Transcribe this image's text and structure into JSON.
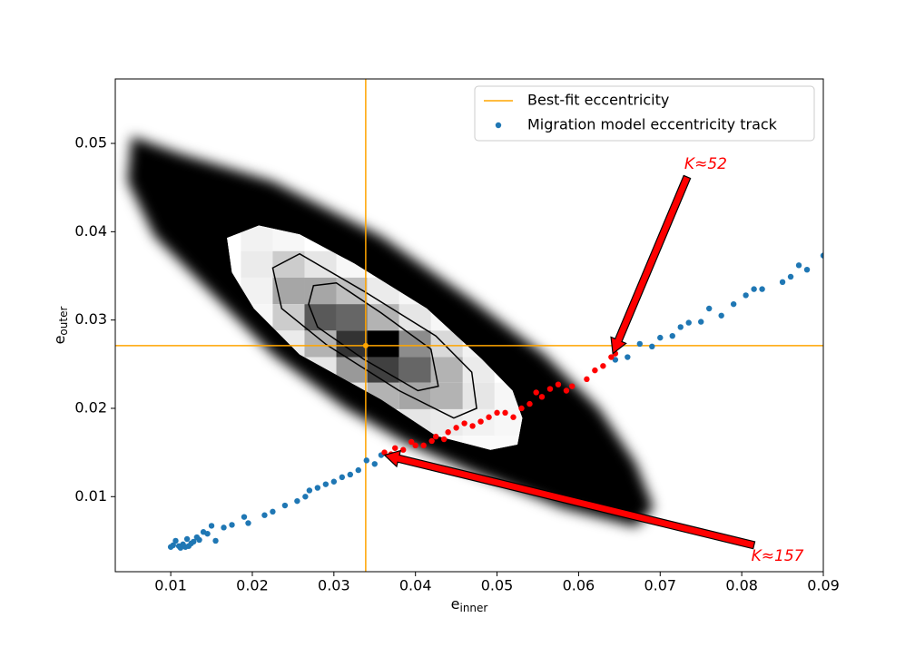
{
  "chart_data": {
    "type": "scatter",
    "xlabel": {
      "text": "e",
      "subscript": "inner"
    },
    "ylabel": {
      "text": "e",
      "subscript": "outer"
    },
    "xlim": [
      0.0032,
      0.09
    ],
    "ylim": [
      0.0015,
      0.0573
    ],
    "xticks": [
      0.01,
      0.02,
      0.03,
      0.04,
      0.05,
      0.06,
      0.07,
      0.08,
      0.09
    ],
    "yticks": [
      0.01,
      0.02,
      0.03,
      0.04,
      0.05
    ],
    "legend": "upper right",
    "cloud": {
      "color": "#000000",
      "x": [
        0.0052,
        0.0113,
        0.0225,
        0.0358,
        0.0469,
        0.0558,
        0.0625,
        0.067,
        0.0692,
        0.067,
        0.0581,
        0.0469,
        0.0392,
        0.0314,
        0.0225,
        0.0147,
        0.008,
        0.0047
      ],
      "y": [
        0.0508,
        0.0488,
        0.0457,
        0.0395,
        0.0323,
        0.0261,
        0.02,
        0.0138,
        0.0087,
        0.0066,
        0.0087,
        0.0128,
        0.0159,
        0.02,
        0.0261,
        0.0333,
        0.0395,
        0.0457
      ]
    },
    "contours": [
      {
        "fill": "#ffffff",
        "x": [
          0.0169,
          0.0208,
          0.0258,
          0.0325,
          0.0414,
          0.0481,
          0.0519,
          0.0531,
          0.0525,
          0.0492,
          0.0425,
          0.0358,
          0.0258,
          0.0202,
          0.0175
        ],
        "y": [
          0.0393,
          0.0407,
          0.0397,
          0.0364,
          0.0313,
          0.0256,
          0.022,
          0.0189,
          0.0159,
          0.0153,
          0.0169,
          0.021,
          0.0261,
          0.0313,
          0.0354
        ]
      },
      {
        "x": [
          0.0225,
          0.0258,
          0.0336,
          0.0425,
          0.0469,
          0.0475,
          0.0447,
          0.038,
          0.0291,
          0.0236
        ],
        "y": [
          0.0359,
          0.0375,
          0.0333,
          0.0282,
          0.0241,
          0.02,
          0.0189,
          0.022,
          0.0272,
          0.0313
        ]
      },
      {
        "x": [
          0.0275,
          0.0303,
          0.0358,
          0.0419,
          0.0428,
          0.0403,
          0.0336,
          0.028,
          0.0269
        ],
        "y": [
          0.0339,
          0.0342,
          0.0308,
          0.0267,
          0.0225,
          0.022,
          0.0256,
          0.0292,
          0.0318
        ]
      }
    ],
    "hist2d": {
      "xbins": [
        0.0147,
        0.0186,
        0.0225,
        0.0264,
        0.0303,
        0.0341,
        0.038,
        0.0419,
        0.0458,
        0.0497,
        0.0536
      ],
      "ybins": [
        0.0408,
        0.0378,
        0.0348,
        0.0318,
        0.0288,
        0.0258,
        0.0229,
        0.0199,
        0.0169,
        0.0139
      ],
      "values": [
        [
          0,
          0.05,
          0.03,
          0,
          0,
          0,
          0,
          0,
          0,
          0
        ],
        [
          0,
          0.08,
          0.2,
          0.1,
          0.03,
          0,
          0,
          0,
          0,
          0
        ],
        [
          0,
          0.05,
          0.35,
          0.35,
          0.25,
          0.08,
          0.03,
          0,
          0,
          0
        ],
        [
          0,
          0.03,
          0.2,
          0.65,
          0.6,
          0.3,
          0.1,
          0.03,
          0,
          0
        ],
        [
          0,
          0,
          0.08,
          0.3,
          0.8,
          1.0,
          0.45,
          0.15,
          0.05,
          0
        ],
        [
          0,
          0,
          0,
          0.1,
          0.4,
          0.75,
          0.6,
          0.3,
          0.08,
          0
        ],
        [
          0,
          0,
          0,
          0,
          0.1,
          0.3,
          0.35,
          0.3,
          0.1,
          0.03
        ],
        [
          0,
          0,
          0,
          0,
          0,
          0.05,
          0.1,
          0.08,
          0.05,
          0.03
        ],
        [
          0,
          0,
          0,
          0,
          0,
          0,
          0.02,
          0.03,
          0.02,
          0.02
        ]
      ]
    },
    "best_fit": {
      "name": "Best-fit eccentricity",
      "x": 0.0339,
      "y": 0.0271,
      "color": "#ffa500"
    },
    "series": [
      {
        "name": "Migration model eccentricity track",
        "color": "#1f77b4",
        "x": [
          0.01,
          0.0103,
          0.0106,
          0.011,
          0.0112,
          0.0115,
          0.0118,
          0.012,
          0.0122,
          0.0125,
          0.0128,
          0.0132,
          0.0135,
          0.014,
          0.0145,
          0.015,
          0.0155,
          0.0165,
          0.0175,
          0.019,
          0.0195,
          0.0215,
          0.0225,
          0.024,
          0.0255,
          0.0265,
          0.027,
          0.028,
          0.029,
          0.03,
          0.031,
          0.032,
          0.033,
          0.034,
          0.035,
          0.0358,
          0.0645,
          0.066,
          0.0675,
          0.069,
          0.07,
          0.0715,
          0.0725,
          0.0735,
          0.075,
          0.076,
          0.0775,
          0.079,
          0.0805,
          0.0815,
          0.0825,
          0.085,
          0.086,
          0.087,
          0.088,
          0.09
        ],
        "y": [
          0.0043,
          0.0045,
          0.005,
          0.0044,
          0.0042,
          0.0046,
          0.0043,
          0.0052,
          0.0044,
          0.0047,
          0.0049,
          0.0054,
          0.0051,
          0.006,
          0.0058,
          0.0067,
          0.005,
          0.0065,
          0.0068,
          0.0077,
          0.007,
          0.0079,
          0.0083,
          0.009,
          0.0095,
          0.01,
          0.0107,
          0.011,
          0.0114,
          0.0117,
          0.0122,
          0.0125,
          0.013,
          0.0141,
          0.0137,
          0.0147,
          0.0255,
          0.0258,
          0.0273,
          0.027,
          0.028,
          0.0282,
          0.0292,
          0.0297,
          0.0298,
          0.0313,
          0.0305,
          0.0318,
          0.0328,
          0.0335,
          0.0335,
          0.0343,
          0.0349,
          0.0362,
          0.0357,
          0.0373
        ]
      },
      {
        "color": "#ff0000",
        "x": [
          0.0362,
          0.037,
          0.0375,
          0.0385,
          0.0395,
          0.04,
          0.041,
          0.042,
          0.0425,
          0.0435,
          0.044,
          0.045,
          0.046,
          0.047,
          0.048,
          0.049,
          0.05,
          0.051,
          0.052,
          0.053,
          0.054,
          0.0548,
          0.0555,
          0.0565,
          0.0575,
          0.0585,
          0.0592,
          0.061,
          0.062,
          0.063,
          0.064,
          0.0645
        ],
        "y": [
          0.015,
          0.0148,
          0.0155,
          0.0153,
          0.0162,
          0.0158,
          0.0158,
          0.0163,
          0.0168,
          0.0165,
          0.0173,
          0.0178,
          0.0183,
          0.018,
          0.0185,
          0.019,
          0.0195,
          0.0195,
          0.019,
          0.02,
          0.0205,
          0.0218,
          0.0213,
          0.0222,
          0.0227,
          0.022,
          0.0225,
          0.0233,
          0.0243,
          0.0248,
          0.0258,
          0.0262
        ]
      }
    ],
    "annotations": [
      {
        "text": "K≈52",
        "xy": [
          0.0642,
          0.0262
        ],
        "xytext": [
          0.0733,
          0.0462
        ],
        "color": "#ff0000"
      },
      {
        "text": "K≈157",
        "xy": [
          0.0362,
          0.0147
        ],
        "xytext": [
          0.0815,
          0.0045
        ],
        "color": "#ff0000"
      }
    ]
  }
}
